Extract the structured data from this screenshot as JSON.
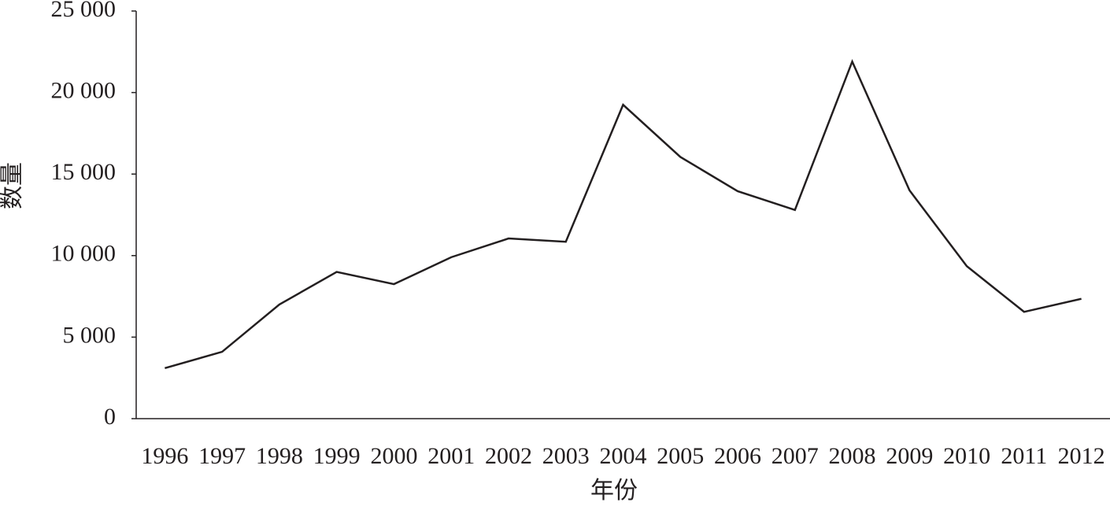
{
  "chart_data": {
    "type": "line",
    "x_label": "年份",
    "y_label": "数量",
    "categories": [
      "1996",
      "1997",
      "1998",
      "1999",
      "2000",
      "2001",
      "2002",
      "2003",
      "2004",
      "2005",
      "2006",
      "2007",
      "2008",
      "2009",
      "2010",
      "2011",
      "2012"
    ],
    "values": [
      3100,
      4100,
      7000,
      9000,
      8250,
      9900,
      11050,
      10850,
      19250,
      16050,
      13950,
      12800,
      21900,
      14000,
      9350,
      6550,
      7350
    ],
    "color": "#231f20",
    "ylim": [
      0,
      25000
    ],
    "yticks": [
      0,
      {
        "value": 5000,
        "label": "5 000"
      },
      {
        "value": 10000,
        "label": "10 000"
      },
      {
        "value": 15000,
        "label": "15 000"
      },
      {
        "value": 20000,
        "label": "20 000"
      },
      {
        "value": 25000,
        "label": "25 000"
      }
    ],
    "grid": false
  }
}
